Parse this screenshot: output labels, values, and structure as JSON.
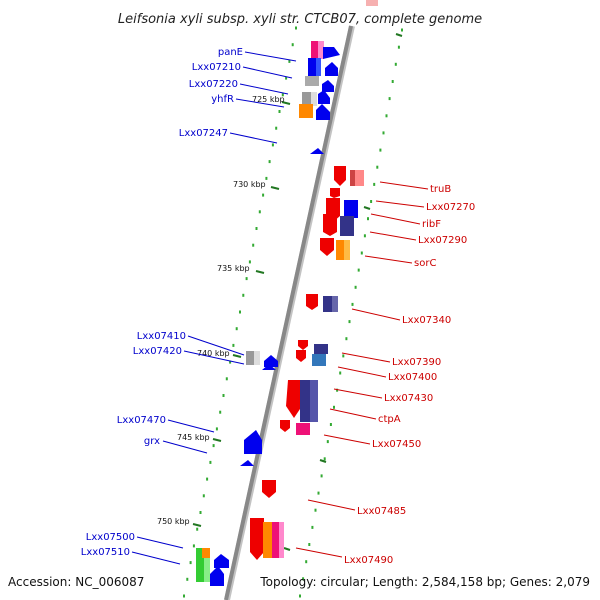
{
  "title": "Leifsonia xyli subsp. xyli str. CTCB07, complete genome",
  "footer": {
    "accession": "Accession: NC_006087",
    "stats": "Topology: circular; Length: 2,584,158 bp; Genes: 2,079"
  },
  "colors": {
    "backbone": "#888888",
    "tick_dot": "#33aa33",
    "tick_major": "#227722",
    "label_left": "#0000cc",
    "label_right": "#cc0000"
  },
  "scale": {
    "ticks": [
      {
        "label": "725 kbp"
      },
      {
        "label": "730 kbp"
      },
      {
        "label": "735 kbp"
      },
      {
        "label": "740 kbp"
      },
      {
        "label": "745 kbp"
      },
      {
        "label": "750 kbp"
      }
    ]
  },
  "genes_left": [
    {
      "name": "panE",
      "color": "#0000ee"
    },
    {
      "name": "Lxx07210",
      "color": "#0000ee"
    },
    {
      "name": "Lxx07220",
      "color": "#0000ee"
    },
    {
      "name": "yhfR",
      "color": "#0000ee"
    },
    {
      "name": "Lxx07247",
      "color": "#0000ee"
    },
    {
      "name": "Lxx07410",
      "color": "#0000ee"
    },
    {
      "name": "Lxx07420",
      "color": "#0000ee"
    },
    {
      "name": "Lxx07470",
      "color": "#0000ee"
    },
    {
      "name": "grx",
      "color": "#0000ee"
    },
    {
      "name": "Lxx07500",
      "color": "#0000ee"
    },
    {
      "name": "Lxx07510",
      "color": "#0000ee"
    }
  ],
  "genes_right": [
    {
      "name": "truB",
      "color": "#ee0000"
    },
    {
      "name": "Lxx07270",
      "color": "#ee0000"
    },
    {
      "name": "ribF",
      "color": "#ee0000"
    },
    {
      "name": "Lxx07290",
      "color": "#ee0000"
    },
    {
      "name": "sorC",
      "color": "#ee0000"
    },
    {
      "name": "Lxx07340",
      "color": "#ee0000"
    },
    {
      "name": "Lxx07390",
      "color": "#ee0000"
    },
    {
      "name": "Lxx07400",
      "color": "#ee0000"
    },
    {
      "name": "Lxx07430",
      "color": "#ee0000"
    },
    {
      "name": "ctpA",
      "color": "#ee0000"
    },
    {
      "name": "Lxx07450",
      "color": "#ee0000"
    },
    {
      "name": "Lxx07485",
      "color": "#ee0000"
    },
    {
      "name": "Lxx07490",
      "color": "#ee0000"
    }
  ]
}
